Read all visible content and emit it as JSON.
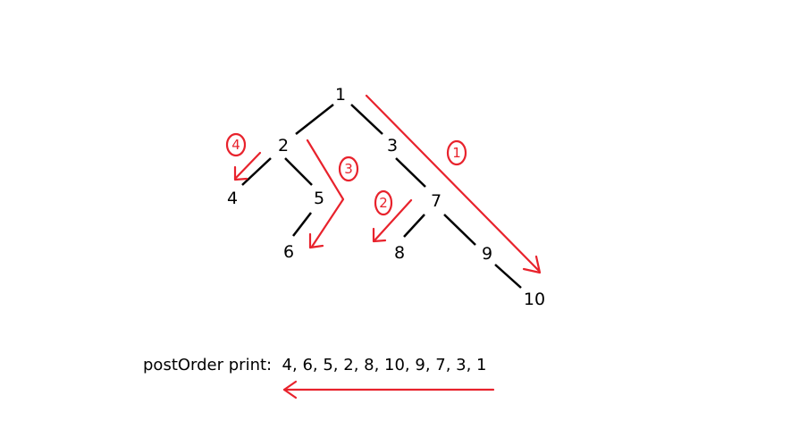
{
  "colors": {
    "background": "#ffffff",
    "tree": "#000000",
    "annotation": "#e8222c"
  },
  "tree": {
    "nodes": [
      {
        "id": "1",
        "label": "1"
      },
      {
        "id": "2",
        "label": "2"
      },
      {
        "id": "3",
        "label": "3"
      },
      {
        "id": "4",
        "label": "4"
      },
      {
        "id": "5",
        "label": "5"
      },
      {
        "id": "6",
        "label": "6"
      },
      {
        "id": "7",
        "label": "7"
      },
      {
        "id": "8",
        "label": "8"
      },
      {
        "id": "9",
        "label": "9"
      },
      {
        "id": "10",
        "label": "10"
      }
    ],
    "edges": [
      {
        "from": "1",
        "to": "2"
      },
      {
        "from": "1",
        "to": "3"
      },
      {
        "from": "2",
        "to": "4"
      },
      {
        "from": "2",
        "to": "5"
      },
      {
        "from": "5",
        "to": "6"
      },
      {
        "from": "3",
        "to": "7"
      },
      {
        "from": "7",
        "to": "8"
      },
      {
        "from": "7",
        "to": "9"
      },
      {
        "from": "9",
        "to": "10"
      }
    ]
  },
  "annotations": {
    "steps": [
      {
        "id": "step-1",
        "label": "1"
      },
      {
        "id": "step-2",
        "label": "2"
      },
      {
        "id": "step-3",
        "label": "3"
      },
      {
        "id": "step-4",
        "label": "4"
      }
    ]
  },
  "caption": {
    "text": "postOrder print:  4, 6, 5, 2, 8, 10, 9, 7, 3, 1"
  }
}
